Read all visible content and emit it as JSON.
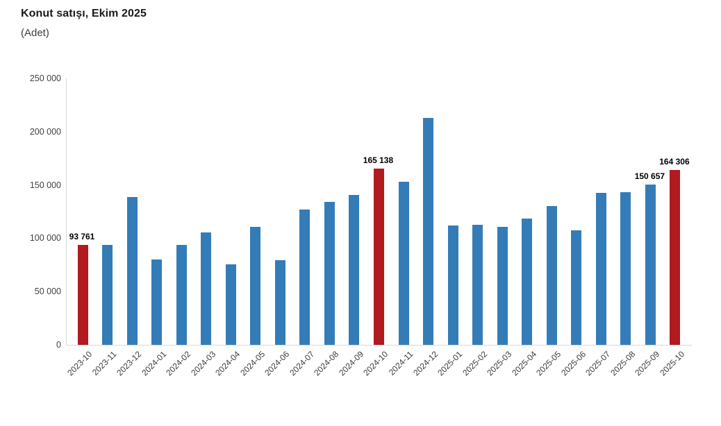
{
  "header": {
    "title": "Konut satışı, Ekim 2025",
    "subtitle": "(Adet)"
  },
  "chart_data": {
    "type": "bar",
    "title": "Konut satışı, Ekim 2025",
    "unit_label": "(Adet)",
    "xlabel": "",
    "ylabel": "",
    "ylim": [
      0,
      250000
    ],
    "grid": false,
    "legend_position": "none",
    "categories": [
      "2023-10",
      "2023-11",
      "2023-12",
      "2024-01",
      "2024-02",
      "2024-03",
      "2024-04",
      "2024-05",
      "2024-06",
      "2024-07",
      "2024-08",
      "2024-09",
      "2024-10",
      "2024-11",
      "2024-12",
      "2025-01",
      "2025-02",
      "2025-03",
      "2025-04",
      "2025-05",
      "2025-06",
      "2025-07",
      "2025-08",
      "2025-09",
      "2025-10"
    ],
    "values": [
      93761,
      93514,
      138577,
      80308,
      93902,
      105476,
      75569,
      110588,
      79313,
      127088,
      134155,
      140919,
      165138,
      153014,
      212637,
      112173,
      112818,
      110795,
      118359,
      130025,
      107723,
      142858,
      143319,
      150657,
      164306
    ],
    "highlighted_categories": [
      "2023-10",
      "2024-10",
      "2025-10"
    ],
    "point_labels": {
      "2023-10": "93 761",
      "2024-10": "165 138",
      "2025-09": "150 657",
      "2025-10": "164 306"
    },
    "yticks": [
      {
        "value": 0,
        "label": "0"
      },
      {
        "value": 50000,
        "label": "50 000"
      },
      {
        "value": 100000,
        "label": "100 000"
      },
      {
        "value": 150000,
        "label": "150 000"
      },
      {
        "value": 200000,
        "label": "200 000"
      },
      {
        "value": 250000,
        "label": "250 000"
      }
    ],
    "colors": {
      "bar": "#347cb8",
      "highlight": "#b01b20",
      "axis_line": "#d9d9d9",
      "tick_text": "#404040",
      "data_label_text": "#000000"
    }
  }
}
